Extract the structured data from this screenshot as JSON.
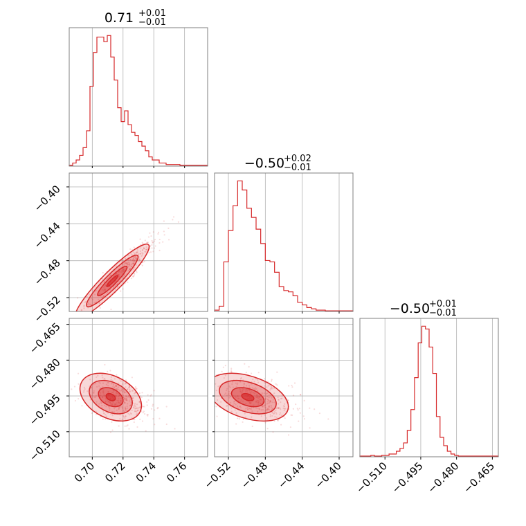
{
  "chart_data": {
    "type": "corner",
    "color": "#d62728",
    "params": [
      {
        "range": [
          0.685,
          0.775
        ],
        "ticks": [
          0.7,
          0.72,
          0.74,
          0.76
        ],
        "tick_labels": [
          "0.70",
          "0.72",
          "0.74",
          "0.76"
        ]
      },
      {
        "range": [
          -0.535,
          -0.385
        ],
        "ticks": [
          -0.52,
          -0.48,
          -0.44,
          -0.4
        ],
        "tick_labels": [
          "−0.52",
          "−0.48",
          "−0.44",
          "−0.40"
        ]
      },
      {
        "range": [
          -0.5205,
          -0.4625
        ],
        "ticks": [
          -0.51,
          -0.495,
          -0.48,
          -0.465
        ],
        "tick_labels": [
          "−0.510",
          "−0.495",
          "−0.480",
          "−0.465"
        ]
      }
    ],
    "titles": [
      {
        "value": "0.71",
        "plus": "+0.01",
        "minus": "−0.01"
      },
      {
        "value": "−0.50",
        "plus": "+0.02",
        "minus": "−0.01"
      },
      {
        "value": "−0.50",
        "plus": "+0.01",
        "minus": "−0.01"
      }
    ],
    "histograms": [
      {
        "param": 0,
        "values": [
          0.5,
          2,
          4,
          7,
          12,
          23,
          52,
          74,
          84,
          84,
          81,
          85,
          71,
          56,
          38,
          29,
          36,
          27,
          22,
          20,
          16,
          13,
          10,
          6,
          4,
          4,
          2,
          2,
          1,
          1,
          1,
          1,
          0.5,
          0.5,
          0.5,
          0.5,
          0.5,
          0.5,
          0.5,
          0.5
        ]
      },
      {
        "param": 1,
        "values": [
          1,
          4,
          38,
          62,
          81,
          100,
          93,
          79,
          72,
          63,
          52,
          39,
          38,
          30,
          19,
          16,
          15,
          12,
          7,
          5,
          3,
          2,
          1,
          1,
          0.5,
          0.5,
          0.5,
          0.5,
          0.5,
          0.5
        ]
      },
      {
        "param": 2,
        "values": [
          0.5,
          0.5,
          0.5,
          1,
          0.5,
          0.5,
          1,
          1,
          2,
          2,
          4,
          6,
          10,
          19,
          34,
          57,
          82,
          94,
          92,
          79,
          60,
          29,
          14,
          8,
          4,
          2,
          1,
          0.5,
          0.5,
          0.5,
          0.5,
          0.5,
          0.5,
          0.5,
          0.5,
          0.5,
          0.5,
          0.5
        ]
      }
    ],
    "grid": true
  }
}
